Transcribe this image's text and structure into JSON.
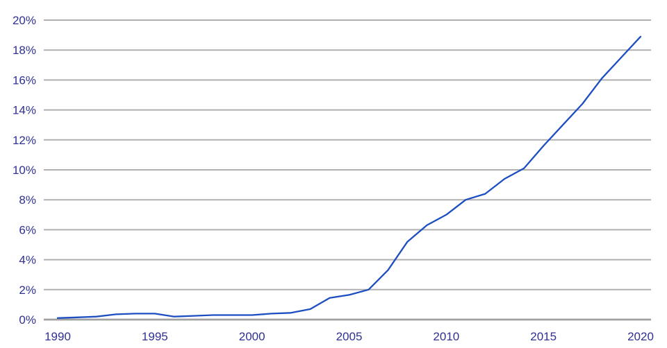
{
  "chart_data": {
    "type": "line",
    "title": "",
    "x": [
      1990,
      1991,
      1992,
      1993,
      1994,
      1995,
      1996,
      1997,
      1998,
      1999,
      2000,
      2001,
      2002,
      2003,
      2004,
      2005,
      2006,
      2007,
      2008,
      2009,
      2010,
      2011,
      2012,
      2013,
      2014,
      2015,
      2016,
      2017,
      2018,
      2019,
      2020
    ],
    "series": [
      {
        "name": "",
        "values": [
          0.1,
          0.15,
          0.2,
          0.35,
          0.4,
          0.4,
          0.2,
          0.25,
          0.3,
          0.3,
          0.3,
          0.4,
          0.45,
          0.7,
          1.45,
          1.65,
          2.0,
          3.3,
          5.2,
          6.3,
          7.0,
          8.0,
          8.4,
          9.4,
          10.1,
          11.6,
          13.0,
          14.4,
          16.1,
          17.5,
          18.9
        ]
      }
    ],
    "xlabel": "",
    "ylabel": "",
    "xlim": [
      1990,
      2020
    ],
    "ylim": [
      0,
      20
    ],
    "x_tick_labels": [
      "1990",
      "1995",
      "2000",
      "2005",
      "2010",
      "2015",
      "2020"
    ],
    "x_tick_years": [
      1990,
      1995,
      2000,
      2005,
      2010,
      2015,
      2020
    ],
    "y_tick_values": [
      0,
      2,
      4,
      6,
      8,
      10,
      12,
      14,
      16,
      18,
      20
    ],
    "y_tick_labels": [
      "0%",
      "2%",
      "4%",
      "6%",
      "8%",
      "10%",
      "12%",
      "14%",
      "16%",
      "18%",
      "20%"
    ],
    "grid": "horizontal",
    "legend": "none",
    "colors": {
      "line": "#1c4ec2",
      "gridline": "#b0b0b0",
      "baseline": "#a0a0a0",
      "tick_label": "#2e3192",
      "background": "#ffffff"
    }
  }
}
